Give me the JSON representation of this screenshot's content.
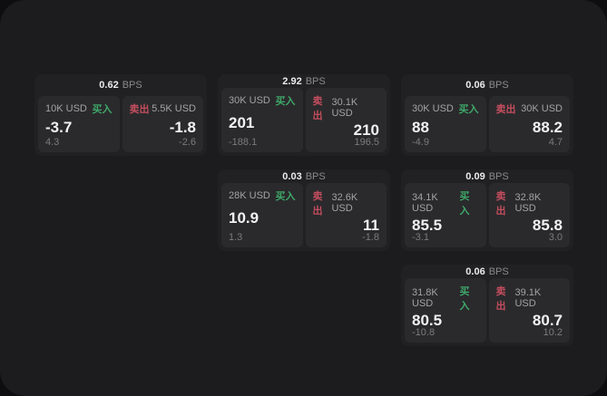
{
  "labels": {
    "bps_unit": "BPS",
    "buy_tag": "买入",
    "sell_tag": "卖出"
  },
  "colors": {
    "buy": "#3fa86a",
    "sell": "#c44d5e",
    "window_bg": "#1c1c1e",
    "card_bg": "#212123",
    "panel_bg": "#2a2a2c"
  },
  "cards": [
    {
      "row": 1,
      "col": 1,
      "bps": "0.62",
      "buy": {
        "size": "10K USD",
        "value": "-3.7",
        "sub": "4.3"
      },
      "sell": {
        "size": "5.5K USD",
        "value": "-1.8",
        "sub": "-2.6"
      }
    },
    {
      "row": 1,
      "col": 2,
      "bps": "2.92",
      "buy": {
        "size": "30K USD",
        "value": "201",
        "sub": "-188.1"
      },
      "sell": {
        "size": "30.1K USD",
        "value": "210",
        "sub": "196.5"
      }
    },
    {
      "row": 1,
      "col": 3,
      "bps": "0.06",
      "buy": {
        "size": "30K USD",
        "value": "88",
        "sub": "-4.9"
      },
      "sell": {
        "size": "30K USD",
        "value": "88.2",
        "sub": "4.7"
      }
    },
    {
      "row": 2,
      "col": 2,
      "bps": "0.03",
      "buy": {
        "size": "28K USD",
        "value": "10.9",
        "sub": "1.3"
      },
      "sell": {
        "size": "32.6K USD",
        "value": "11",
        "sub": "-1.8"
      }
    },
    {
      "row": 2,
      "col": 3,
      "bps": "0.09",
      "buy": {
        "size": "34.1K USD",
        "value": "85.5",
        "sub": "-3.1"
      },
      "sell": {
        "size": "32.8K USD",
        "value": "85.8",
        "sub": "3.0"
      }
    },
    {
      "row": 3,
      "col": 3,
      "bps": "0.06",
      "buy": {
        "size": "31.8K USD",
        "value": "80.5",
        "sub": "-10.8"
      },
      "sell": {
        "size": "39.1K USD",
        "value": "80.7",
        "sub": "10.2"
      }
    }
  ]
}
